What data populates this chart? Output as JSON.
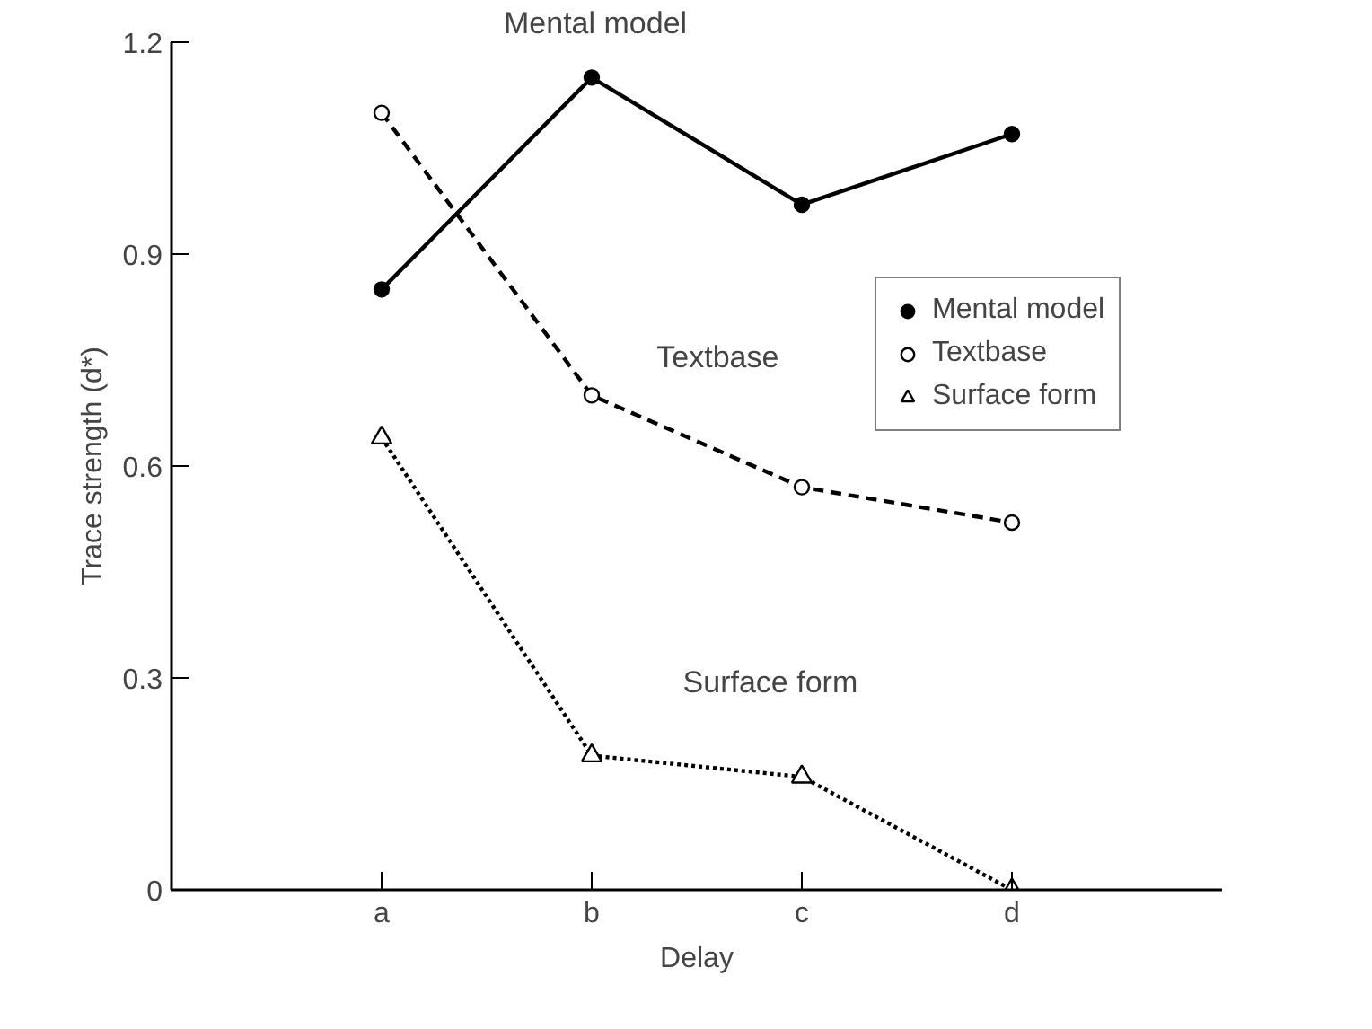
{
  "chart_data": {
    "type": "line",
    "xlabel": "Delay",
    "ylabel": "Trace strength (d*)",
    "categories": [
      "a",
      "b",
      "c",
      "d"
    ],
    "ylim": [
      0,
      1.2
    ],
    "yticks": [
      0,
      0.3,
      0.6,
      0.9,
      1.2
    ],
    "grid": false,
    "legend": "right",
    "series": [
      {
        "name": "Mental model",
        "color": "#000000",
        "marker": "circle",
        "line_style": "solid",
        "values": [
          0.85,
          1.15,
          0.97,
          1.07
        ]
      },
      {
        "name": "Textbase",
        "color": "#000000",
        "marker": "circle",
        "line_style": "dashed",
        "values": [
          1.1,
          0.7,
          0.57,
          0.52
        ]
      },
      {
        "name": "Surface form",
        "color": "#000000",
        "marker": "triangle",
        "line_style": "dotted",
        "values": [
          0.64,
          0.19,
          0.16,
          0.0
        ]
      }
    ],
    "annotations": [
      "Mental model",
      "Textbase",
      "Surface form"
    ]
  }
}
